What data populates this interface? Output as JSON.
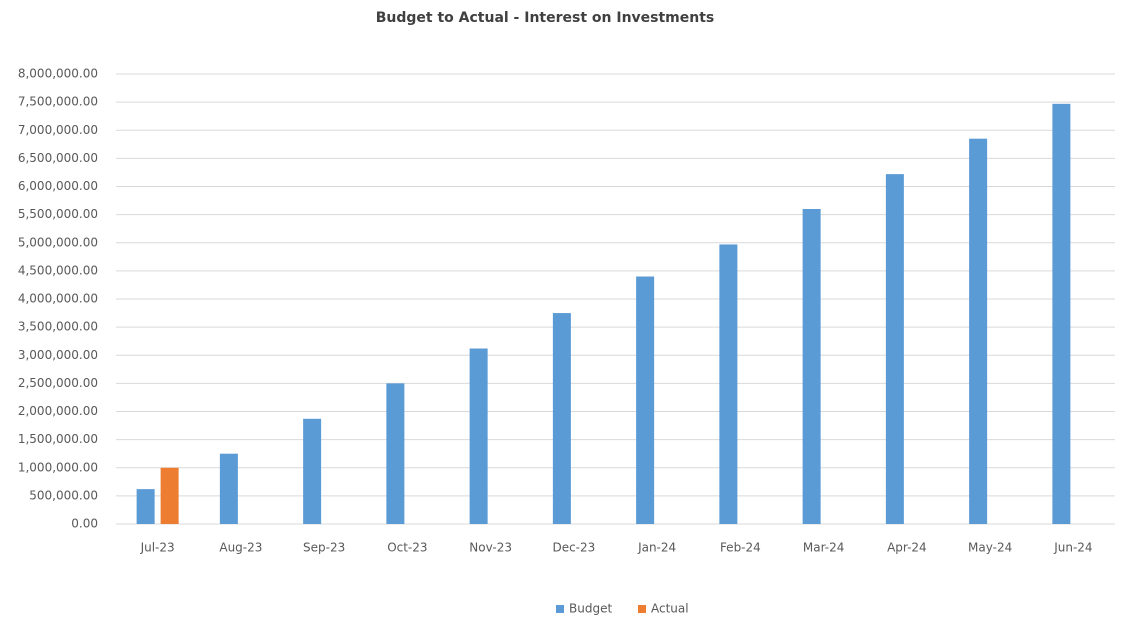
{
  "chart_data": {
    "type": "bar",
    "title": "Budget to Actual - Interest on Investments",
    "categories": [
      "Jul-23",
      "Aug-23",
      "Sep-23",
      "Oct-23",
      "Nov-23",
      "Dec-23",
      "Jan-24",
      "Feb-24",
      "Mar-24",
      "Apr-24",
      "May-24",
      "Jun-24"
    ],
    "series": [
      {
        "name": "Budget",
        "color": "#5b9bd5",
        "values": [
          620000,
          1250000,
          1870000,
          2500000,
          3120000,
          3750000,
          4400000,
          4970000,
          5600000,
          6220000,
          6850000,
          7470000
        ]
      },
      {
        "name": "Actual",
        "color": "#ed7d31",
        "values": [
          1000000,
          null,
          null,
          null,
          null,
          null,
          null,
          null,
          null,
          null,
          null,
          null
        ]
      }
    ],
    "ylim": [
      0,
      8000000
    ],
    "yticks": [
      {
        "value": 0,
        "label": "0.00"
      },
      {
        "value": 500000,
        "label": "500,000.00"
      },
      {
        "value": 1000000,
        "label": "1,000,000.00"
      },
      {
        "value": 1500000,
        "label": "1,500,000.00"
      },
      {
        "value": 2000000,
        "label": "2,000,000.00"
      },
      {
        "value": 2500000,
        "label": "2,500,000.00"
      },
      {
        "value": 3000000,
        "label": "3,000,000.00"
      },
      {
        "value": 3500000,
        "label": "3,500,000.00"
      },
      {
        "value": 4000000,
        "label": "4,000,000.00"
      },
      {
        "value": 4500000,
        "label": "4,500,000.00"
      },
      {
        "value": 5000000,
        "label": "5,000,000.00"
      },
      {
        "value": 5500000,
        "label": "5,500,000.00"
      },
      {
        "value": 6000000,
        "label": "6,000,000.00"
      },
      {
        "value": 6500000,
        "label": "6,500,000.00"
      },
      {
        "value": 7000000,
        "label": "7,000,000.00"
      },
      {
        "value": 7500000,
        "label": "7,500,000.00"
      },
      {
        "value": 8000000,
        "label": "8,000,000.00"
      }
    ],
    "grid": true,
    "legend": "bottom"
  }
}
